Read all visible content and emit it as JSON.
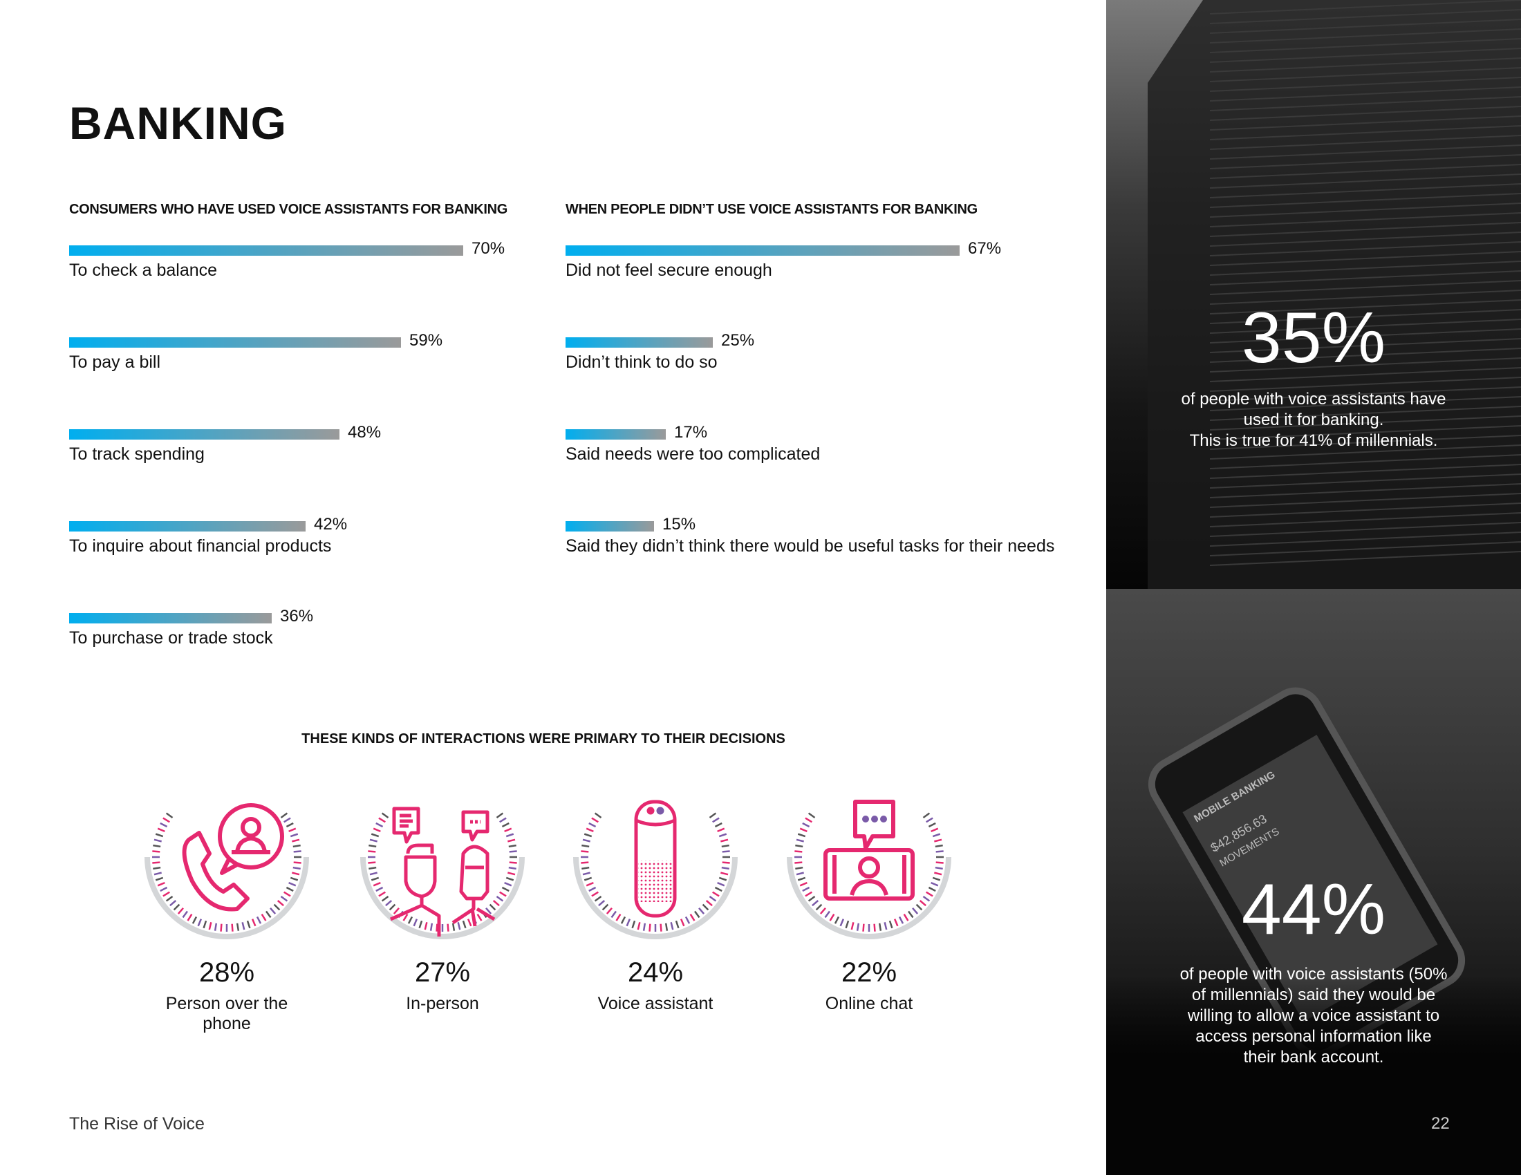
{
  "page": {
    "title": "BANKING",
    "footer": "The Rise of Voice",
    "page_number": "22"
  },
  "colors": {
    "bar_start": "#00aeef",
    "bar_end": "#9a9a9a",
    "icon": "#e5286f",
    "ring_grey": "#d4d6d8"
  },
  "chart_data": [
    {
      "type": "bar",
      "orientation": "horizontal",
      "title": "CONSUMERS WHO HAVE USED VOICE ASSISTANTS FOR BANKING",
      "categories": [
        "To check a balance",
        "To pay a bill",
        "To track spending",
        "To inquire about financial products",
        "To purchase or trade stock"
      ],
      "values": [
        70,
        59,
        48,
        42,
        36
      ],
      "value_labels": [
        "70%",
        "59%",
        "48%",
        "42%",
        "36%"
      ]
    },
    {
      "type": "bar",
      "orientation": "horizontal",
      "title": "WHEN PEOPLE DIDN’T USE VOICE ASSISTANTS FOR BANKING",
      "categories": [
        "Did not feel secure enough",
        "Didn’t think to do so",
        "Said needs were too complicated",
        "Said they didn’t think there would be useful tasks for their needs"
      ],
      "values": [
        67,
        25,
        17,
        15
      ],
      "value_labels": [
        "67%",
        "25%",
        "17%",
        "15%"
      ]
    }
  ],
  "interactions": {
    "heading": "THESE KINDS OF INTERACTIONS WERE PRIMARY TO THEIR DECISIONS",
    "items": [
      {
        "value": "28%",
        "label": "Person over the phone",
        "icon": "phone-agent-icon"
      },
      {
        "value": "27%",
        "label": "In-person",
        "icon": "two-people-chat-icon"
      },
      {
        "value": "24%",
        "label": "Voice assistant",
        "icon": "smart-speaker-icon"
      },
      {
        "value": "22%",
        "label": "Online chat",
        "icon": "video-chat-icon"
      }
    ]
  },
  "sidebar": {
    "stat1": {
      "value": "35%",
      "lines": [
        "of people with voice assistants have",
        "used it for banking.",
        "This is true for 41% of millennials."
      ]
    },
    "stat2": {
      "value": "44%",
      "lines": [
        "of people with voice assistants (50%",
        "of millennials) said they would be",
        "willing to allow a voice assistant to",
        "access personal information like",
        "their bank account."
      ]
    },
    "phone_screen": {
      "app": "MOBILE BANKING",
      "balance": "$42,856.63",
      "section": "MOVEMENTS"
    }
  }
}
